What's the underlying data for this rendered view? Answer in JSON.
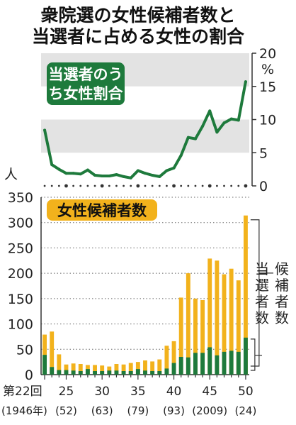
{
  "title": [
    "衆院選の女性候補者数と",
    "当選者に占める女性の割合"
  ],
  "colors": {
    "green": "#1e7a3c",
    "orange": "#f2b21c",
    "band": "#e3e3e3",
    "axis": "#333333",
    "grid": "#666666"
  },
  "chart_data": [
    {
      "type": "line",
      "label": "当選者のうち女性割合",
      "unit": "%",
      "yticks": [
        0,
        5,
        10,
        15,
        20
      ],
      "ylim": [
        0,
        20
      ],
      "x": [
        22,
        23,
        24,
        25,
        26,
        27,
        28,
        29,
        30,
        31,
        32,
        33,
        34,
        35,
        36,
        37,
        38,
        39,
        40,
        41,
        42,
        43,
        44,
        45,
        46,
        47,
        48,
        49,
        50
      ],
      "values": [
        8.4,
        3.2,
        2.5,
        1.9,
        1.9,
        1.8,
        2.4,
        1.6,
        1.5,
        1.5,
        1.7,
        1.4,
        1.2,
        2.3,
        1.9,
        1.6,
        1.4,
        2.3,
        2.7,
        4.6,
        7.3,
        7.1,
        9.0,
        11.3,
        8.1,
        9.5,
        10.1,
        9.9,
        15.7
      ]
    },
    {
      "type": "bar",
      "label": "女性候補者数",
      "unit": "人",
      "ylim": [
        0,
        350
      ],
      "yticks": [
        0,
        50,
        100,
        150,
        200,
        250,
        300,
        350
      ],
      "x": [
        22,
        23,
        24,
        25,
        26,
        27,
        28,
        29,
        30,
        31,
        32,
        33,
        34,
        35,
        36,
        37,
        38,
        39,
        40,
        41,
        42,
        43,
        44,
        45,
        46,
        47,
        48,
        49,
        50
      ],
      "series": [
        {
          "name": "当選者数",
          "values": [
            39,
            15,
            9,
            9,
            8,
            7,
            11,
            7,
            7,
            8,
            8,
            7,
            7,
            11,
            8,
            7,
            7,
            12,
            23,
            35,
            34,
            43,
            43,
            54,
            38,
            45,
            47,
            45,
            73
          ]
        },
        {
          "name": "候補者数",
          "values": [
            79,
            85,
            40,
            20,
            22,
            21,
            19,
            19,
            18,
            16,
            21,
            20,
            23,
            25,
            28,
            26,
            30,
            57,
            66,
            152,
            200,
            150,
            147,
            229,
            225,
            198,
            209,
            186,
            314
          ]
        }
      ],
      "xtick_labels": [
        {
          "label": "第22回",
          "sub": "(1946年)"
        },
        {
          "label": "25",
          "sub": "(52)"
        },
        {
          "label": "30",
          "sub": "(63)"
        },
        {
          "label": "35",
          "sub": "(79)"
        },
        {
          "label": "40",
          "sub": "(93)"
        },
        {
          "label": "45",
          "sub": "(2009)"
        },
        {
          "label": "50",
          "sub": "(24)"
        }
      ]
    }
  ]
}
